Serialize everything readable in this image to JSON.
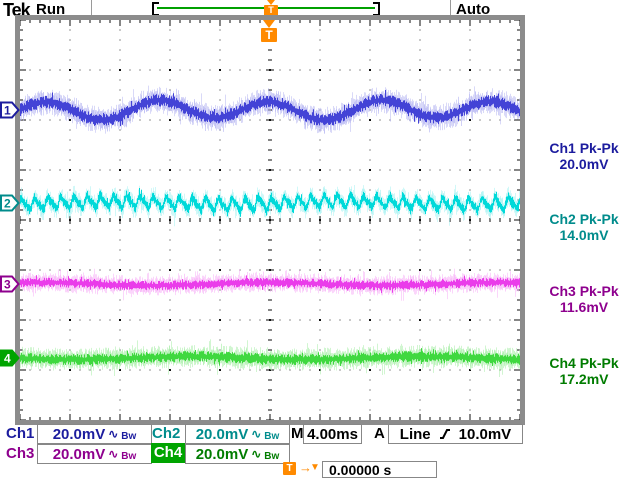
{
  "header": {
    "logo": "Tek",
    "acq_status": "Run",
    "trigger_mode": "Auto"
  },
  "record_view": {
    "left_bracket": "[",
    "right_bracket": "]",
    "trigger_flag": "T"
  },
  "graticule_trigger_marker": {
    "label": "T"
  },
  "channels": [
    {
      "id": "1",
      "label": "Ch1",
      "scale": "20.0mV",
      "coupling": "∿",
      "bandwidth": "Bw",
      "text_color": "#1c1c9e",
      "wave_color": "#4343d6",
      "fringe_color": "#b9b9f2",
      "selected": false
    },
    {
      "id": "2",
      "label": "Ch2",
      "scale": "20.0mV",
      "coupling": "∿",
      "bandwidth": "Bw",
      "text_color": "#008c8c",
      "wave_color": "#00d9d9",
      "fringe_color": "#aaf3f3",
      "selected": false
    },
    {
      "id": "3",
      "label": "Ch3",
      "scale": "20.0mV",
      "coupling": "∿",
      "bandwidth": "Bw",
      "text_color": "#8e008e",
      "wave_color": "#ea3cea",
      "fringe_color": "#f7b4f7",
      "selected": false
    },
    {
      "id": "4",
      "label": "Ch4",
      "scale": "20.0mV",
      "coupling": "∿",
      "bandwidth": "Bw",
      "text_color": "#007c00",
      "wave_color": "#3fd83f",
      "fringe_color": "#abefab",
      "selected": true,
      "selected_bg": "#00a400"
    }
  ],
  "measurements": [
    {
      "label": "Ch1 Pk-Pk",
      "value": "20.0mV"
    },
    {
      "label": "Ch2 Pk-Pk",
      "value": "14.0mV"
    },
    {
      "label": "Ch3 Pk-Pk",
      "value": "11.6mV"
    },
    {
      "label": "Ch4 Pk-Pk",
      "value": "17.2mV"
    }
  ],
  "timebase": {
    "prefix": "M",
    "value": "4.00ms"
  },
  "trigger": {
    "mode_prefix": "A",
    "source": "Line",
    "slope": "rising",
    "level": "10.0mV"
  },
  "delay": {
    "t": "T",
    "arrow": "→",
    "marker": "▼",
    "value": "0.00000 s"
  },
  "colors": {
    "accent_orange": "#ff8a00",
    "record_bar_green": "#00a000",
    "frame_gray": "#8c8c8c"
  },
  "chart_data": {
    "type": "line",
    "title": "Tektronix oscilloscope display — 4 noisy channels with Pk-Pk measurements",
    "x": {
      "per_div": "4.00ms",
      "divisions": 10,
      "window": "40.0ms"
    },
    "y": {
      "per_div": "20.0mV",
      "divisions": 8
    },
    "trigger": {
      "mode": "Auto",
      "type": "A",
      "source": "Line",
      "slope": "rising",
      "level": "10.0mV",
      "delay": "0.00000 s",
      "position_div_from_left": 5
    },
    "series": [
      {
        "name": "Ch1",
        "volts_per_div_mV": 20.0,
        "pk_pk_mV": 20.0,
        "offset_div_above_center": 2.2,
        "shape": "sine_ripple_with_noise",
        "cycles_on_screen": 4.5,
        "ripple_amp_div": 0.18,
        "noise_band_div": 0.5
      },
      {
        "name": "Ch2",
        "volts_per_div_mV": 20.0,
        "pk_pk_mV": 14.0,
        "offset_div_above_center": 0.34,
        "shape": "hf_ripple_with_noise",
        "cycles_on_screen": 38,
        "ripple_amp_div": 0.1,
        "noise_band_div": 0.4
      },
      {
        "name": "Ch3",
        "volts_per_div_mV": 20.0,
        "pk_pk_mV": 11.6,
        "offset_div_above_center": -1.28,
        "shape": "noise",
        "cycles_on_screen": 0,
        "ripple_amp_div": 0,
        "noise_band_div": 0.36
      },
      {
        "name": "Ch4",
        "volts_per_div_mV": 20.0,
        "pk_pk_mV": 17.2,
        "offset_div_above_center": -2.76,
        "shape": "noise",
        "cycles_on_screen": 0,
        "ripple_amp_div": 0,
        "noise_band_div": 0.42
      }
    ]
  }
}
